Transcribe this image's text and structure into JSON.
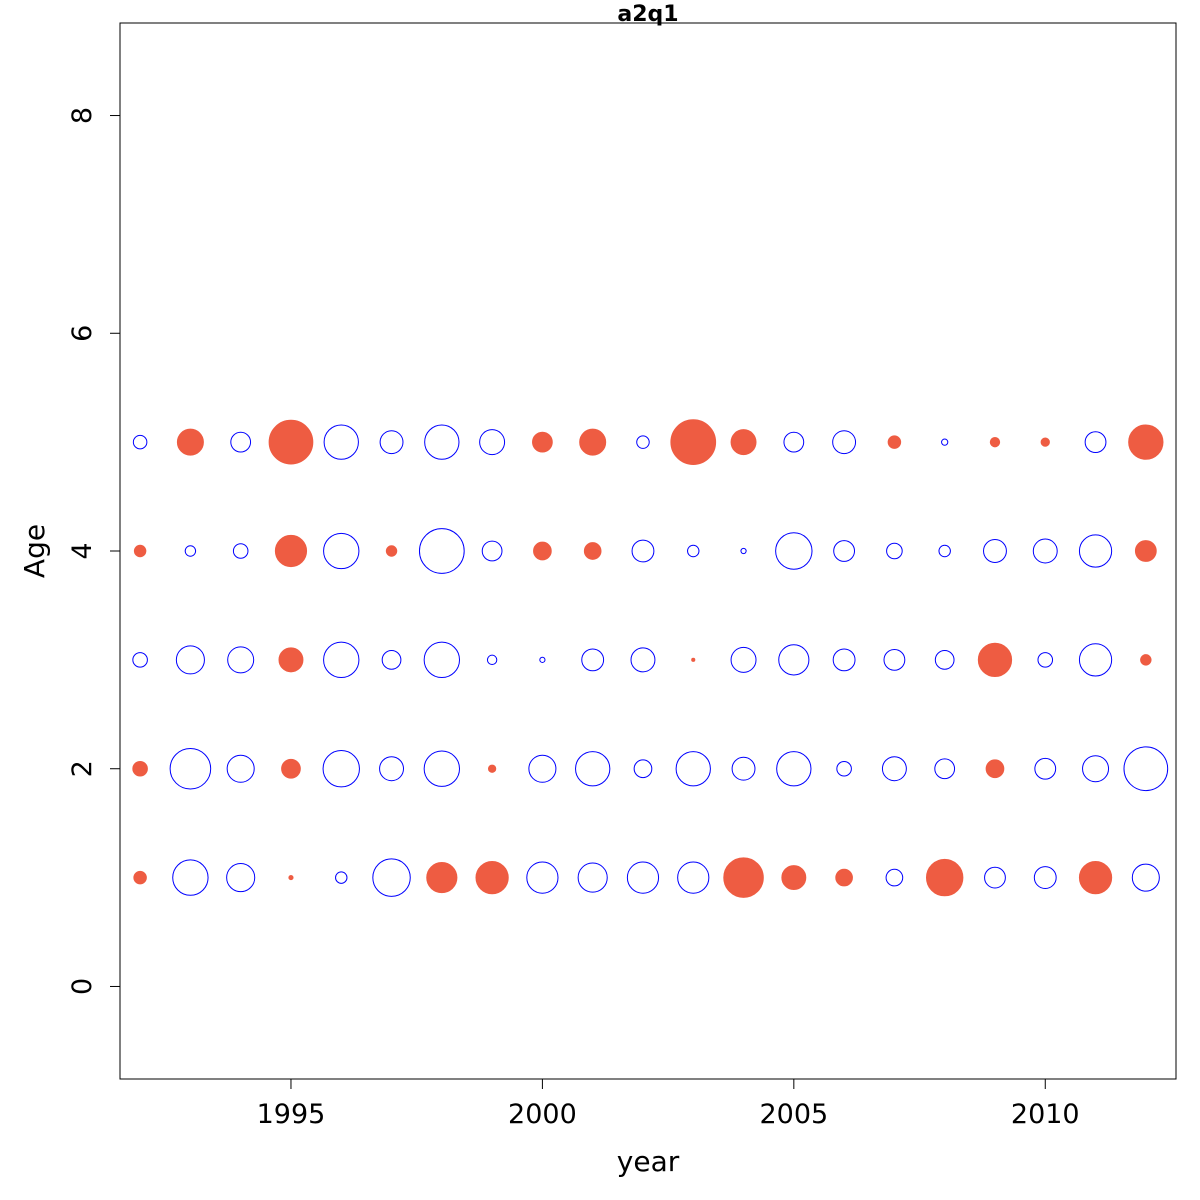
{
  "chart_data": {
    "type": "scatter",
    "subtype": "bubble",
    "title": "a2q1",
    "xlabel": "year",
    "ylabel": "Age",
    "xlim": [
      1991.6,
      2012.6
    ],
    "ylim": [
      -0.85,
      8.85
    ],
    "xticks": [
      "1995",
      "2000",
      "2005",
      "2010"
    ],
    "yticks": [
      "0",
      "2",
      "4",
      "6",
      "8"
    ],
    "grid": false,
    "legend": "none",
    "colors": {
      "positive": "#ee5c42",
      "negative": "#0000ff"
    },
    "encoding": "bubble radius proportional to residual magnitude; filled red = positive, open blue = negative",
    "years": [
      1992,
      1993,
      1994,
      1995,
      1996,
      1997,
      1998,
      1999,
      2000,
      2001,
      2002,
      2003,
      2004,
      2005,
      2006,
      2007,
      2008,
      2009,
      2010,
      2011,
      2012
    ],
    "series": [
      {
        "age": 1,
        "values": [
          0.12,
          -0.34,
          -0.27,
          0.04,
          -0.11,
          -0.36,
          0.29,
          0.31,
          -0.3,
          -0.28,
          -0.3,
          -0.3,
          0.38,
          0.23,
          0.16,
          -0.16,
          0.35,
          -0.2,
          -0.21,
          0.31,
          -0.26
        ]
      },
      {
        "age": 2,
        "values": [
          0.14,
          -0.39,
          -0.26,
          0.18,
          -0.35,
          -0.23,
          -0.34,
          0.07,
          -0.26,
          -0.33,
          -0.17,
          -0.33,
          -0.22,
          -0.33,
          -0.14,
          -0.23,
          -0.19,
          0.17,
          -0.2,
          -0.25,
          -0.42
        ]
      },
      {
        "age": 3,
        "values": [
          -0.14,
          -0.27,
          -0.25,
          0.23,
          -0.34,
          -0.18,
          -0.34,
          -0.09,
          -0.05,
          -0.21,
          -0.23,
          0.03,
          -0.24,
          -0.29,
          -0.21,
          -0.2,
          -0.18,
          0.32,
          -0.14,
          -0.31,
          0.1
        ]
      },
      {
        "age": 4,
        "values": [
          0.11,
          -0.1,
          -0.14,
          0.3,
          -0.34,
          0.1,
          -0.43,
          -0.19,
          0.17,
          0.16,
          -0.21,
          -0.11,
          -0.05,
          -0.35,
          -0.2,
          -0.15,
          -0.11,
          -0.22,
          -0.23,
          -0.31,
          0.2
        ]
      },
      {
        "age": 5,
        "values": [
          -0.13,
          0.25,
          -0.19,
          0.42,
          -0.33,
          -0.22,
          -0.33,
          -0.24,
          0.19,
          0.25,
          -0.12,
          0.43,
          0.24,
          -0.19,
          -0.22,
          0.12,
          -0.06,
          0.09,
          0.08,
          -0.2,
          0.33
        ]
      }
    ]
  }
}
